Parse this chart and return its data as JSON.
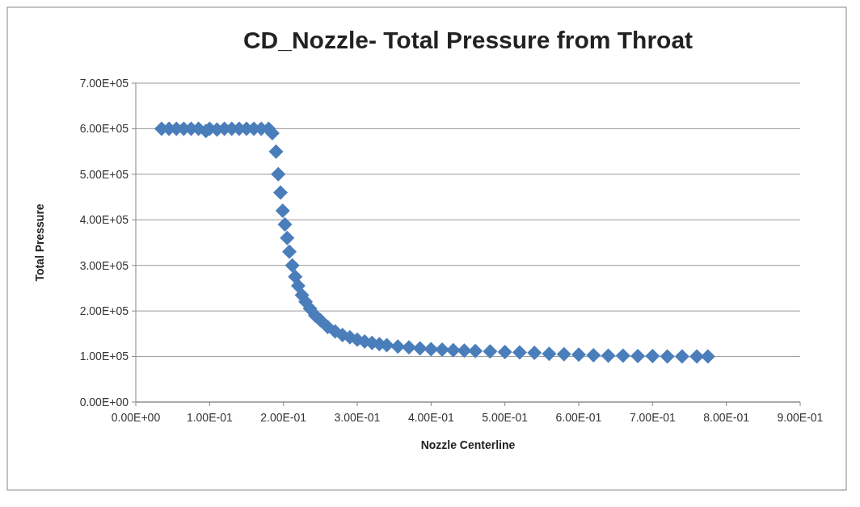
{
  "chart_data": {
    "type": "scatter",
    "title": "CD_Nozzle- Total Pressure from Throat",
    "xlabel": "Nozzle Centerline",
    "ylabel": "Total Pressure",
    "marker": "diamond",
    "grid": "y",
    "xlim": [
      0,
      0.9
    ],
    "ylim": [
      0,
      700000
    ],
    "xticks": [
      {
        "value": 0,
        "label": "0.00E+00"
      },
      {
        "value": 0.1,
        "label": "1.00E-01"
      },
      {
        "value": 0.2,
        "label": "2.00E-01"
      },
      {
        "value": 0.3,
        "label": "3.00E-01"
      },
      {
        "value": 0.4,
        "label": "4.00E-01"
      },
      {
        "value": 0.5,
        "label": "5.00E-01"
      },
      {
        "value": 0.6,
        "label": "6.00E-01"
      },
      {
        "value": 0.7,
        "label": "7.00E-01"
      },
      {
        "value": 0.8,
        "label": "8.00E-01"
      },
      {
        "value": 0.9,
        "label": "9.00E-01"
      }
    ],
    "yticks": [
      {
        "value": 0,
        "label": "0.00E+00"
      },
      {
        "value": 100000,
        "label": "1.00E+05"
      },
      {
        "value": 200000,
        "label": "2.00E+05"
      },
      {
        "value": 300000,
        "label": "3.00E+05"
      },
      {
        "value": 400000,
        "label": "4.00E+05"
      },
      {
        "value": 500000,
        "label": "5.00E+05"
      },
      {
        "value": 600000,
        "label": "6.00E+05"
      },
      {
        "value": 700000,
        "label": "7.00E+05"
      }
    ],
    "series": [
      {
        "color": "#4a7ebb",
        "x": [
          0.035,
          0.045,
          0.055,
          0.065,
          0.075,
          0.085,
          0.095,
          0.1,
          0.11,
          0.12,
          0.13,
          0.14,
          0.15,
          0.16,
          0.17,
          0.18,
          0.185,
          0.19,
          0.193,
          0.196,
          0.199,
          0.202,
          0.205,
          0.208,
          0.212,
          0.216,
          0.22,
          0.225,
          0.23,
          0.236,
          0.243,
          0.25,
          0.26,
          0.27,
          0.28,
          0.29,
          0.3,
          0.31,
          0.32,
          0.33,
          0.34,
          0.355,
          0.37,
          0.385,
          0.4,
          0.415,
          0.43,
          0.445,
          0.46,
          0.48,
          0.5,
          0.52,
          0.54,
          0.56,
          0.58,
          0.6,
          0.62,
          0.64,
          0.66,
          0.68,
          0.7,
          0.72,
          0.74,
          0.76,
          0.775
        ],
        "values": [
          600000,
          600000,
          600000,
          600000,
          600000,
          600000,
          595000,
          600000,
          598000,
          600000,
          600000,
          600000,
          600000,
          600000,
          600000,
          600000,
          590000,
          550000,
          500000,
          460000,
          420000,
          390000,
          360000,
          330000,
          300000,
          275000,
          255000,
          235000,
          220000,
          205000,
          190000,
          180000,
          165000,
          155000,
          147000,
          142000,
          137000,
          133000,
          130000,
          127000,
          125000,
          122000,
          120000,
          118000,
          116000,
          115000,
          114000,
          113000,
          112000,
          111000,
          110000,
          109000,
          108000,
          106000,
          105000,
          104000,
          103000,
          102000,
          102000,
          101000,
          101000,
          100000,
          100000,
          100000,
          100000
        ]
      }
    ]
  }
}
